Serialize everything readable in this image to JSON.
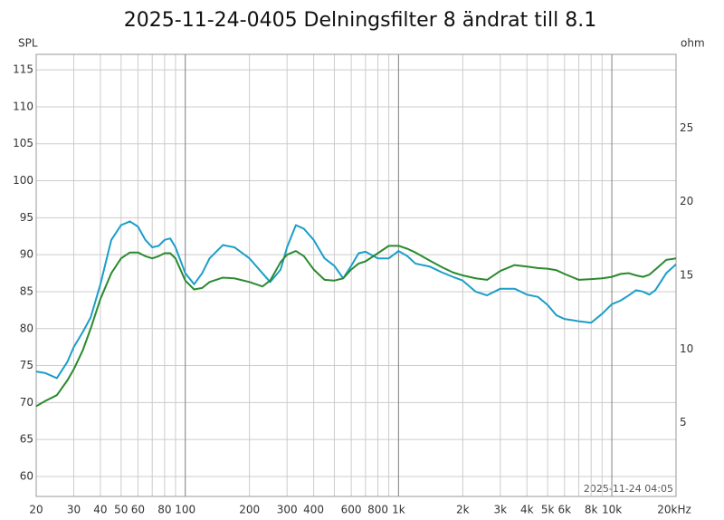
{
  "chart_data": {
    "type": "line",
    "title": "2025-11-24-0405 Delningsfilter 8 ändrat till 8.1",
    "y_label": "SPL",
    "y2_label": "ohm",
    "timestamp": "2025-11-24 04:05",
    "xscale": "log",
    "grid": true,
    "xlim": [
      20,
      20000
    ],
    "ylim": [
      57.3,
      117.1
    ],
    "y2lim": [
      0,
      30
    ],
    "xticks": [
      20,
      30,
      40,
      50,
      60,
      80,
      100,
      200,
      300,
      400,
      600,
      800,
      {
        "value": 1000,
        "label": "1k"
      },
      {
        "value": 2000,
        "label": "2k"
      },
      {
        "value": 3000,
        "label": "3k"
      },
      {
        "value": 4000,
        "label": "4k"
      },
      {
        "value": 5000,
        "label": "5k"
      },
      {
        "value": 6000,
        "label": "6k"
      },
      {
        "value": 8000,
        "label": "8k"
      },
      {
        "value": 10000,
        "label": "10k"
      },
      {
        "value": 20000,
        "label": "20kHz"
      }
    ],
    "xgrid_minor": [
      70,
      90,
      500,
      700,
      900,
      7000,
      9000
    ],
    "xgrid_major": [
      100,
      1000,
      10000
    ],
    "yticks": [
      60,
      65,
      70,
      75,
      80,
      85,
      90,
      95,
      100,
      105,
      110,
      115
    ],
    "y2ticks": [
      5,
      10,
      15,
      20,
      25
    ],
    "x": [
      20,
      22,
      25,
      28,
      30,
      33,
      36,
      40,
      45,
      50,
      55,
      60,
      65,
      70,
      75,
      80,
      85,
      90,
      100,
      110,
      120,
      130,
      150,
      170,
      200,
      230,
      250,
      280,
      300,
      330,
      360,
      400,
      450,
      500,
      550,
      600,
      650,
      700,
      800,
      900,
      1000,
      1100,
      1200,
      1400,
      1600,
      1800,
      2000,
      2300,
      2600,
      3000,
      3500,
      4000,
      4500,
      5000,
      5500,
      6000,
      7000,
      8000,
      9000,
      10000,
      11000,
      12000,
      13000,
      14000,
      15000,
      16000,
      18000,
      20000
    ],
    "series": [
      {
        "color": "#1b9ec8",
        "values": [
          74.2,
          74.0,
          73.3,
          75.5,
          77.5,
          79.5,
          81.5,
          86,
          92,
          94.0,
          94.5,
          93.8,
          92,
          91.0,
          91.2,
          92,
          92.2,
          91,
          87.5,
          86,
          87.5,
          89.5,
          91.3,
          91.0,
          89.5,
          87.5,
          86.3,
          88,
          91,
          94,
          93.5,
          92,
          89.5,
          88.5,
          86.8,
          88.5,
          90.2,
          90.4,
          89.5,
          89.5,
          90.5,
          89.8,
          88.8,
          88.4,
          87.6,
          87.0,
          86.5,
          85.0,
          84.5,
          85.4,
          85.4,
          84.6,
          84.3,
          83.2,
          81.8,
          81.3,
          81.0,
          80.8,
          82.0,
          83.3,
          83.8,
          84.5,
          85.2,
          85.0,
          84.6,
          85.2,
          87.5,
          88.7
        ]
      },
      {
        "color": "#2a8a2e",
        "values": [
          69.5,
          70.2,
          71.0,
          73,
          74.5,
          77,
          80,
          84,
          87.5,
          89.5,
          90.3,
          90.3,
          89.8,
          89.5,
          89.8,
          90.2,
          90.2,
          89.5,
          86.5,
          85.3,
          85.5,
          86.3,
          86.9,
          86.8,
          86.3,
          85.7,
          86.5,
          89,
          90,
          90.5,
          89.8,
          88,
          86.6,
          86.5,
          86.8,
          88.0,
          88.8,
          89.1,
          90.2,
          91.2,
          91.2,
          90.8,
          90.3,
          89.2,
          88.3,
          87.6,
          87.2,
          86.8,
          86.6,
          87.8,
          88.6,
          88.4,
          88.2,
          88.1,
          87.9,
          87.4,
          86.6,
          86.7,
          86.8,
          87.0,
          87.4,
          87.5,
          87.2,
          87.0,
          87.3,
          88.0,
          89.3,
          89.5
        ]
      }
    ]
  }
}
